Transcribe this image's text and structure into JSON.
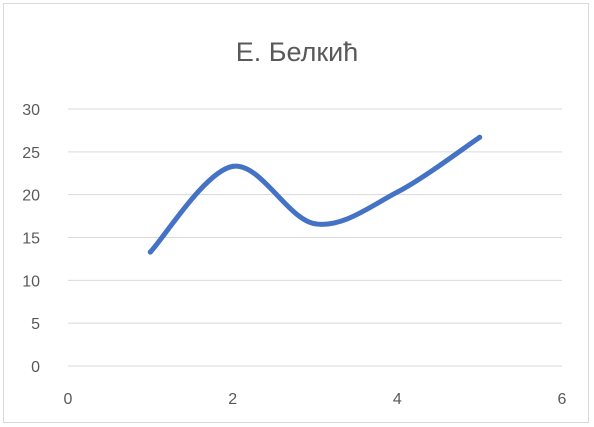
{
  "chart_data": {
    "type": "line",
    "title": "Е. Белкић",
    "xlabel": "",
    "ylabel": "",
    "x": [
      1,
      2,
      3,
      4,
      5
    ],
    "series": [
      {
        "values": [
          13.3,
          23.3,
          16.6,
          20.3,
          26.7
        ],
        "color": "#4472C4"
      }
    ],
    "xlim": [
      0,
      6
    ],
    "ylim": [
      0,
      30
    ],
    "xticks": [
      0,
      2,
      4,
      6
    ],
    "yticks": [
      0,
      5,
      10,
      15,
      20,
      25,
      30
    ],
    "xtick_labels": [
      "0",
      "2",
      "4",
      "6"
    ],
    "ytick_labels": [
      "0",
      "5",
      "10",
      "15",
      "20",
      "25",
      "30"
    ],
    "grid": "horizontal",
    "legend": "none",
    "smooth": true,
    "colors": {
      "line": "#4472C4",
      "grid": "#d9d9d9",
      "text": "#595959"
    }
  }
}
